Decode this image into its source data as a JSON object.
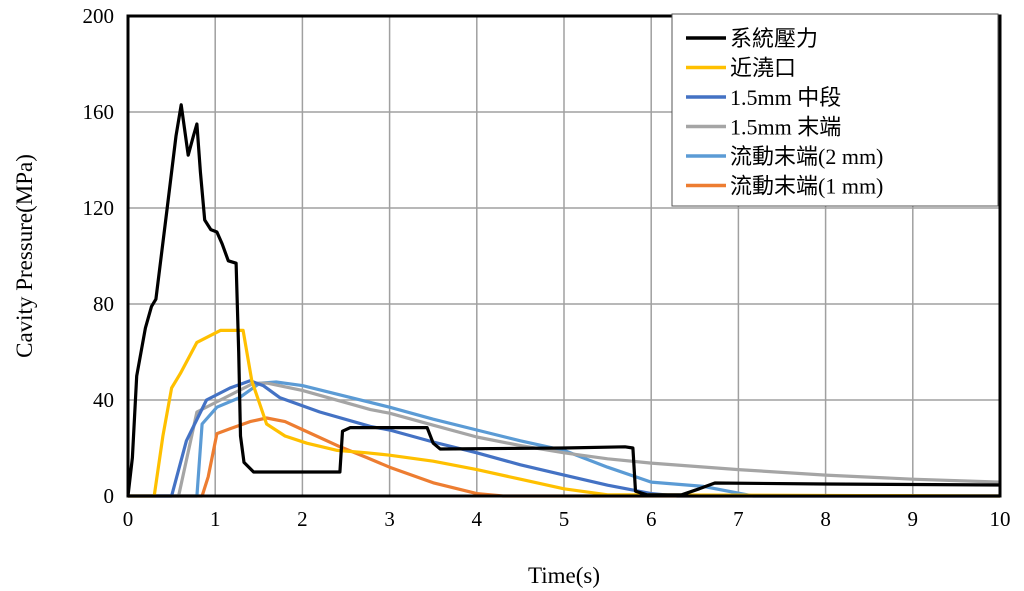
{
  "chart_data": {
    "type": "line",
    "title": "",
    "xlabel": "Time(s)",
    "ylabel": "Cavity Pressure(MPa)",
    "xlim": [
      0,
      10
    ],
    "ylim": [
      0,
      200
    ],
    "xticks": [
      0,
      1,
      2,
      3,
      4,
      5,
      6,
      7,
      8,
      9,
      10
    ],
    "yticks": [
      0,
      40,
      80,
      120,
      160,
      200
    ],
    "grid": true,
    "legend_position": "top-right",
    "series": [
      {
        "name": "系統壓力",
        "color": "#000000",
        "points": [
          [
            0,
            0
          ],
          [
            0.05,
            16
          ],
          [
            0.1,
            50
          ],
          [
            0.2,
            70
          ],
          [
            0.27,
            79
          ],
          [
            0.32,
            82
          ],
          [
            0.45,
            120
          ],
          [
            0.55,
            150
          ],
          [
            0.61,
            163
          ],
          [
            0.69,
            142
          ],
          [
            0.75,
            150
          ],
          [
            0.79,
            155
          ],
          [
            0.83,
            135
          ],
          [
            0.88,
            115
          ],
          [
            0.95,
            111
          ],
          [
            1.02,
            110
          ],
          [
            1.08,
            105
          ],
          [
            1.15,
            98
          ],
          [
            1.24,
            97
          ],
          [
            1.27,
            60
          ],
          [
            1.29,
            25
          ],
          [
            1.33,
            14
          ],
          [
            1.44,
            10
          ],
          [
            2.0,
            10
          ],
          [
            2.43,
            10
          ],
          [
            2.46,
            27
          ],
          [
            2.55,
            28.5
          ],
          [
            3.43,
            28.5
          ],
          [
            3.5,
            22
          ],
          [
            3.58,
            19.6
          ],
          [
            5.0,
            20
          ],
          [
            5.7,
            20.5
          ],
          [
            5.79,
            20
          ],
          [
            5.82,
            2
          ],
          [
            5.95,
            0.5
          ],
          [
            6.35,
            0.5
          ],
          [
            6.55,
            3
          ],
          [
            6.73,
            5.4
          ],
          [
            8,
            5
          ],
          [
            10,
            4.6
          ]
        ]
      },
      {
        "name": "近澆口",
        "color": "#FFC000",
        "points": [
          [
            0,
            0
          ],
          [
            0.3,
            0
          ],
          [
            0.4,
            25
          ],
          [
            0.5,
            45
          ],
          [
            0.6,
            51
          ],
          [
            0.79,
            64
          ],
          [
            1.06,
            69
          ],
          [
            1.32,
            69
          ],
          [
            1.42,
            48
          ],
          [
            1.59,
            30
          ],
          [
            1.8,
            25
          ],
          [
            2.05,
            22
          ],
          [
            2.4,
            19
          ],
          [
            2.74,
            18
          ],
          [
            3.0,
            17
          ],
          [
            3.5,
            14.5
          ],
          [
            4.0,
            11
          ],
          [
            4.5,
            7
          ],
          [
            5.0,
            3
          ],
          [
            5.5,
            0.5
          ],
          [
            10,
            0
          ]
        ]
      },
      {
        "name": "1.5mm 中段",
        "color": "#4472C4",
        "points": [
          [
            0,
            0
          ],
          [
            0.5,
            0
          ],
          [
            0.67,
            23
          ],
          [
            0.9,
            40
          ],
          [
            1.17,
            45
          ],
          [
            1.4,
            48
          ],
          [
            1.55,
            46
          ],
          [
            1.74,
            41
          ],
          [
            2.2,
            35
          ],
          [
            2.78,
            29
          ],
          [
            3.0,
            27.5
          ],
          [
            3.5,
            22.5
          ],
          [
            4.0,
            18
          ],
          [
            4.5,
            13
          ],
          [
            5.0,
            8.7
          ],
          [
            5.5,
            4.5
          ],
          [
            6.0,
            1
          ],
          [
            6.3,
            0
          ],
          [
            10,
            0
          ]
        ]
      },
      {
        "name": "1.5mm 末端",
        "color": "#A5A5A5",
        "points": [
          [
            0,
            0
          ],
          [
            0.58,
            0
          ],
          [
            0.79,
            35
          ],
          [
            1.06,
            40
          ],
          [
            1.44,
            47
          ],
          [
            1.6,
            47
          ],
          [
            2.0,
            44
          ],
          [
            2.78,
            36
          ],
          [
            3.0,
            34.5
          ],
          [
            3.5,
            29.5
          ],
          [
            4.0,
            24.6
          ],
          [
            4.5,
            21
          ],
          [
            5.0,
            18
          ],
          [
            5.5,
            15.5
          ],
          [
            6.0,
            13.7
          ],
          [
            7.0,
            11
          ],
          [
            8.0,
            8.7
          ],
          [
            9.0,
            7
          ],
          [
            10,
            5.8
          ]
        ]
      },
      {
        "name": "流動末端(2 mm)",
        "color": "#5B9BD5",
        "points": [
          [
            0,
            0
          ],
          [
            0.79,
            0
          ],
          [
            0.85,
            30
          ],
          [
            1.02,
            37
          ],
          [
            1.28,
            41
          ],
          [
            1.51,
            47
          ],
          [
            1.7,
            47.5
          ],
          [
            2.0,
            46
          ],
          [
            2.78,
            39
          ],
          [
            3.0,
            37
          ],
          [
            3.5,
            32
          ],
          [
            4.0,
            27.5
          ],
          [
            4.5,
            23
          ],
          [
            5.0,
            19
          ],
          [
            5.5,
            12
          ],
          [
            6.0,
            5.8
          ],
          [
            6.6,
            4
          ],
          [
            7.17,
            0
          ],
          [
            10,
            0
          ]
        ]
      },
      {
        "name": "流動末端(1 mm)",
        "color": "#ED7D31",
        "points": [
          [
            0,
            0
          ],
          [
            0.85,
            0
          ],
          [
            0.92,
            8
          ],
          [
            1.02,
            26
          ],
          [
            1.17,
            28
          ],
          [
            1.4,
            31
          ],
          [
            1.59,
            32.5
          ],
          [
            1.8,
            31
          ],
          [
            2.01,
            27.5
          ],
          [
            2.4,
            21
          ],
          [
            2.74,
            16
          ],
          [
            3.0,
            12
          ],
          [
            3.5,
            5.5
          ],
          [
            4.0,
            1
          ],
          [
            4.3,
            0
          ],
          [
            10,
            0
          ]
        ]
      }
    ]
  }
}
